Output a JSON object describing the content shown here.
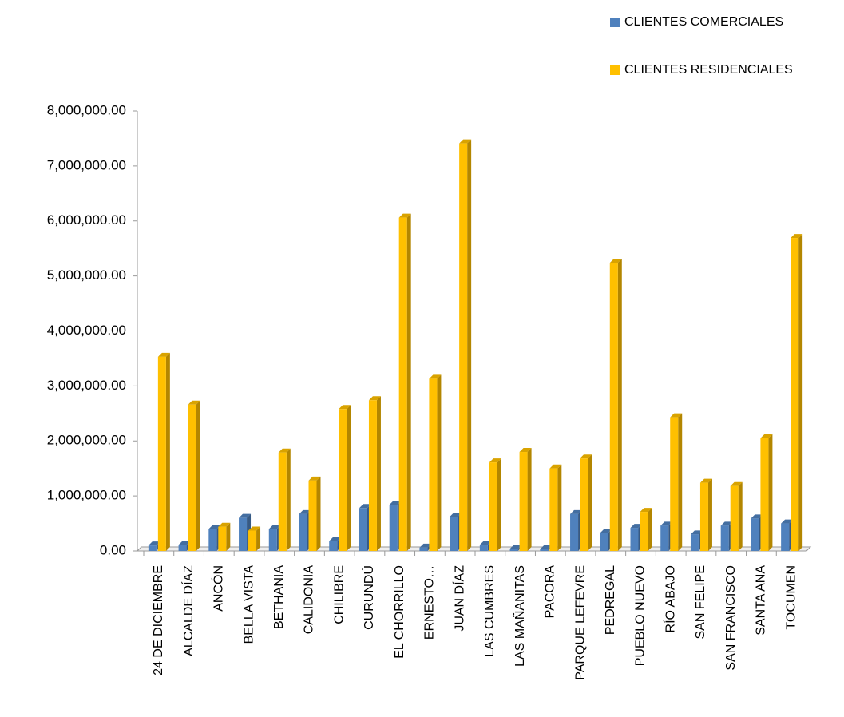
{
  "chart_data": {
    "type": "bar",
    "categories": [
      "24 DE DICIEMBRE",
      "ALCALDE DÍAZ",
      "ANCÓN",
      "BELLA VISTA",
      "BETHANIA",
      "CALIDONIA",
      "CHILIBRE",
      "CURUNDÚ",
      "EL CHORRILLO",
      "ERNESTO…",
      "JUAN DÍAZ",
      "LAS CUMBRES",
      "LAS MAÑANITAS",
      "PACORA",
      "PARQUE LEFEVRE",
      "PEDREGAL",
      "PUEBLO NUEVO",
      "RÍO ABAJO",
      "SAN FELIPE",
      "SAN FRANCISCO",
      "SANTA ANA",
      "TOCUMEN"
    ],
    "series": [
      {
        "name": "CLIENTES COMERCIALES",
        "color": "#4f81bd",
        "values": [
          100000,
          110000,
          400000,
          600000,
          400000,
          670000,
          180000,
          780000,
          840000,
          60000,
          620000,
          110000,
          40000,
          30000,
          670000,
          330000,
          420000,
          460000,
          300000,
          460000,
          590000,
          500000
        ]
      },
      {
        "name": "CLIENTES RESIDENCIALES",
        "color": "#ffc000",
        "values": [
          3530000,
          2660000,
          440000,
          370000,
          1790000,
          1280000,
          2580000,
          2740000,
          6060000,
          3130000,
          7410000,
          1610000,
          1800000,
          1500000,
          1680000,
          5240000,
          710000,
          2430000,
          1240000,
          1180000,
          2050000,
          5690000
        ]
      }
    ],
    "ylim": [
      0,
      8000000
    ],
    "yticks": [
      {
        "value": 0,
        "label": "0.00"
      },
      {
        "value": 1000000,
        "label": "1,000,000.00"
      },
      {
        "value": 2000000,
        "label": "2,000,000.00"
      },
      {
        "value": 3000000,
        "label": "3,000,000.00"
      },
      {
        "value": 4000000,
        "label": "4,000,000.00"
      },
      {
        "value": 5000000,
        "label": "5,000,000.00"
      },
      {
        "value": 6000000,
        "label": "6,000,000.00"
      },
      {
        "value": 7000000,
        "label": "7,000,000.00"
      },
      {
        "value": 8000000,
        "label": "8,000,000.00"
      }
    ],
    "legend": "top-right"
  }
}
